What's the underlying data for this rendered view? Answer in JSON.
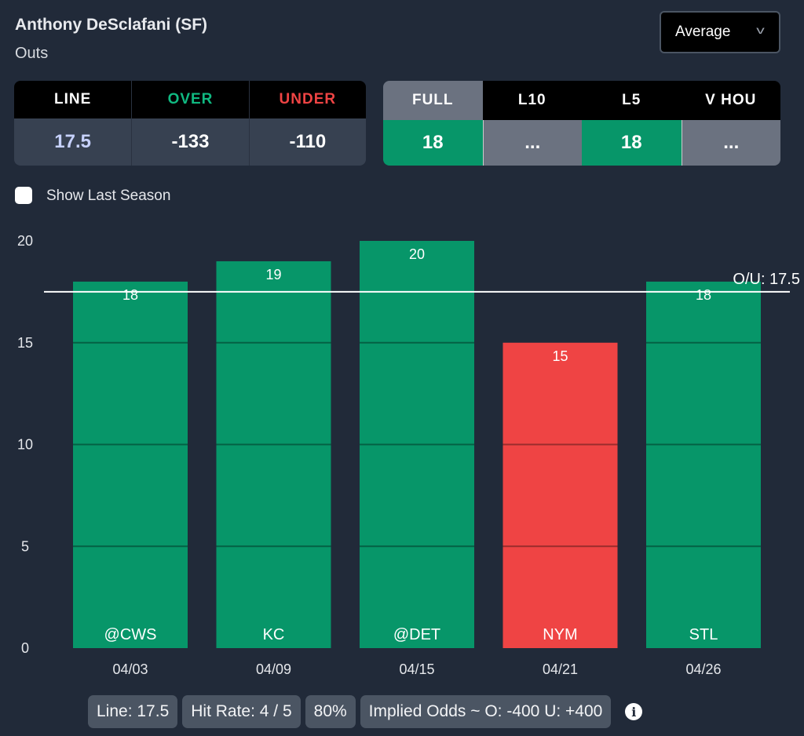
{
  "header": {
    "title": "Anthony DeSclafani (SF)",
    "stat": "Outs",
    "dropdown": "Average"
  },
  "odds": {
    "headers": [
      "LINE",
      "OVER",
      "UNDER"
    ],
    "values": [
      "17.5",
      "-133",
      "-110"
    ],
    "colors": [
      "#ffffff",
      "#10b981",
      "#ef4444"
    ]
  },
  "splits": {
    "headers": [
      "FULL",
      "L10",
      "L5",
      "V HOU"
    ],
    "values": [
      "18",
      "...",
      "18",
      "..."
    ]
  },
  "checkbox": {
    "label": "Show Last Season",
    "checked": false
  },
  "summary": {
    "line": "Line: 17.5",
    "hit_rate": "Hit Rate: 4 / 5",
    "pct": "80%",
    "implied": "Implied Odds ~ O: -400 U: +400"
  },
  "colors": {
    "over": "#079669",
    "under": "#ef4444"
  },
  "chart_data": {
    "type": "bar",
    "categories": [
      "04/03",
      "04/09",
      "04/15",
      "04/21",
      "04/26"
    ],
    "opponents": [
      "@CWS",
      "KC",
      "@DET",
      "NYM",
      "STL"
    ],
    "values": [
      18,
      19,
      20,
      15,
      18
    ],
    "ylim": [
      0,
      20
    ],
    "yticks": [
      0,
      5,
      10,
      15,
      20
    ],
    "line": 17.5,
    "line_label": "O/U: 17.5"
  }
}
